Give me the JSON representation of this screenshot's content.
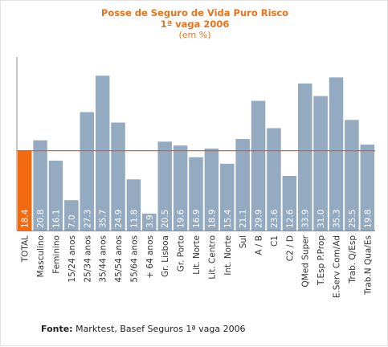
{
  "chart_data": {
    "type": "bar",
    "title": "Posse de Seguro de Vida Puro Risco",
    "subtitle": "1ª vaga 2006",
    "unit_label": "(em %)",
    "categories": [
      "TOTAL",
      "Masculino",
      "Feminino",
      "15/24 anos",
      "25/34 anos",
      "35/44 anos",
      "45/54 anos",
      "55/64 anos",
      "+ 64 anos",
      "Gr. Lisboa",
      "Gr. Porto",
      "Lit. Norte",
      "Lit. Centro",
      "Int. Norte",
      "Sul",
      "A / B",
      "C1",
      "C2 / D",
      "QMed Super",
      "T.Esp P.Prop",
      "E.Serv Com/Ad",
      "Trab. Q/Esp",
      "Trab.N Qua/Es"
    ],
    "values": [
      18.4,
      20.8,
      16.1,
      7.0,
      27.3,
      35.7,
      24.9,
      11.8,
      3.9,
      20.5,
      19.6,
      16.9,
      18.9,
      15.4,
      21.1,
      29.9,
      23.6,
      12.6,
      33.9,
      31.0,
      35.3,
      25.5,
      19.8
    ],
    "value_labels": [
      "18.4",
      "20.8",
      "16.1",
      "7.0",
      "27.3",
      "35.7",
      "24.9",
      "11.8",
      "3.9",
      "20.5",
      "19.6",
      "16.9",
      "18.9",
      "15.4",
      "21.1",
      "29.9",
      "23.6",
      "12.6",
      "33.9",
      "31.0",
      "35.3",
      "25.5",
      "19.8"
    ],
    "reference_line": 18.4,
    "ylim": [
      0,
      40
    ],
    "grid": false,
    "colors": {
      "highlight": "#f26a10",
      "bar": "#93aac0",
      "reference_line": "#e0621a",
      "title": "#e8731c",
      "axis": "#888888"
    }
  },
  "source": {
    "label": "Fonte:",
    "text": "Marktest, Basef Seguros 1ª vaga 2006"
  }
}
